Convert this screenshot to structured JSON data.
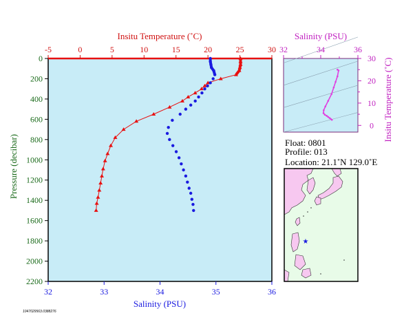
{
  "chart_data": [
    {
      "type": "scatter",
      "top_axis": {
        "label": "Insitu Temperature (˚C)",
        "ticks": [
          -5,
          0,
          5,
          10,
          15,
          20,
          25,
          30
        ],
        "range": [
          -5,
          30
        ]
      },
      "bottom_axis": {
        "label": "Salinity (PSU)",
        "ticks": [
          32,
          33,
          34,
          35,
          36
        ],
        "range": [
          32,
          36
        ]
      },
      "left_axis": {
        "label": "Pressure (decibar)",
        "ticks": [
          0,
          200,
          400,
          600,
          800,
          1000,
          1200,
          1400,
          1600,
          1800,
          2000,
          2200
        ],
        "range": [
          0,
          2200
        ],
        "inverted": true
      },
      "colors": {
        "temperature": "#e81010",
        "salinity": "#1a1ae0",
        "background": "#c8ecf7"
      },
      "temperature_profile": [
        [
          25.1,
          0
        ],
        [
          25.1,
          30
        ],
        [
          25.1,
          60
        ],
        [
          25.0,
          90
        ],
        [
          24.9,
          120
        ],
        [
          24.4,
          160
        ],
        [
          22.0,
          200
        ],
        [
          20.0,
          240
        ],
        [
          19.5,
          270
        ],
        [
          19.0,
          300
        ],
        [
          18.0,
          340
        ],
        [
          16.9,
          380
        ],
        [
          16.0,
          420
        ],
        [
          14.0,
          480
        ],
        [
          11.5,
          550
        ],
        [
          8.8,
          620
        ],
        [
          6.8,
          700
        ],
        [
          5.5,
          780
        ],
        [
          4.8,
          860
        ],
        [
          4.3,
          940
        ],
        [
          3.9,
          1010
        ],
        [
          3.6,
          1090
        ],
        [
          3.4,
          1160
        ],
        [
          3.2,
          1230
        ],
        [
          3.0,
          1300
        ],
        [
          2.8,
          1370
        ],
        [
          2.6,
          1430
        ],
        [
          2.5,
          1500
        ]
      ],
      "salinity_profile": [
        [
          34.9,
          0
        ],
        [
          34.9,
          30
        ],
        [
          34.91,
          60
        ],
        [
          34.92,
          90
        ],
        [
          34.96,
          120
        ],
        [
          34.98,
          160
        ],
        [
          34.95,
          200
        ],
        [
          34.9,
          240
        ],
        [
          34.85,
          270
        ],
        [
          34.8,
          300
        ],
        [
          34.75,
          340
        ],
        [
          34.69,
          380
        ],
        [
          34.63,
          420
        ],
        [
          34.55,
          460
        ],
        [
          34.46,
          500
        ],
        [
          34.36,
          550
        ],
        [
          34.22,
          610
        ],
        [
          34.15,
          680
        ],
        [
          34.13,
          740
        ],
        [
          34.17,
          800
        ],
        [
          34.23,
          860
        ],
        [
          34.29,
          920
        ],
        [
          34.34,
          980
        ],
        [
          34.38,
          1040
        ],
        [
          34.42,
          1100
        ],
        [
          34.46,
          1160
        ],
        [
          34.49,
          1220
        ],
        [
          34.52,
          1280
        ],
        [
          34.55,
          1330
        ],
        [
          34.57,
          1390
        ],
        [
          34.59,
          1440
        ],
        [
          34.6,
          1500
        ]
      ]
    },
    {
      "type": "scatter",
      "top_axis": {
        "label": "Salinity (PSU)",
        "ticks": [
          32,
          34,
          36
        ],
        "range": [
          32,
          36
        ]
      },
      "right_axis": {
        "label": "Insitu Temperature (˚C)",
        "ticks": [
          0,
          10,
          20,
          30
        ],
        "range": [
          -3,
          30
        ]
      },
      "color": "#e040e0",
      "ts_points": [
        [
          34.9,
          25.0
        ],
        [
          34.96,
          24.6
        ],
        [
          34.9,
          22.0
        ],
        [
          34.8,
          19.5
        ],
        [
          34.7,
          17.0
        ],
        [
          34.58,
          14.0
        ],
        [
          34.4,
          11.0
        ],
        [
          34.25,
          8.5
        ],
        [
          34.16,
          6.8
        ],
        [
          34.15,
          5.5
        ],
        [
          34.22,
          4.8
        ],
        [
          34.32,
          4.3
        ],
        [
          34.4,
          3.8
        ],
        [
          34.48,
          3.3
        ],
        [
          34.54,
          2.9
        ],
        [
          34.6,
          2.5
        ]
      ]
    }
  ],
  "info": {
    "float_line": "Float:  0801",
    "profile_line": "Profile:  013",
    "location_line": "Location:  21.1˚N  129.0˚E"
  },
  "footer_id": "1047029563.0388276",
  "map": {
    "marker_color": "#1a1ae0",
    "land_color": "#f7c8f0",
    "sea_color": "#e8fbe8"
  }
}
